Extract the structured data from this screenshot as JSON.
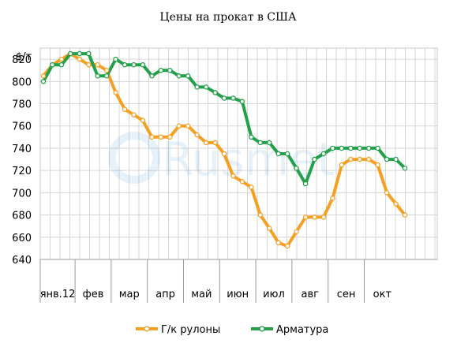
{
  "chart_data": {
    "type": "line",
    "title": "Цены на прокат в США",
    "ylabel": "$/т",
    "ylim": [
      640,
      830
    ],
    "yticks": [
      640,
      660,
      680,
      700,
      720,
      740,
      760,
      780,
      800,
      820
    ],
    "grid": true,
    "legend_position": "bottom",
    "months": [
      "янв.12",
      "фев",
      "мар",
      "апр",
      "май",
      "июн",
      "июл",
      "авг",
      "сен",
      "окт"
    ],
    "month_weeks": [
      4,
      4,
      4,
      4,
      4,
      4,
      4,
      4,
      4,
      4
    ],
    "series": [
      {
        "name": "Г/к рулоны",
        "color": "#f5a023",
        "values": [
          805,
          815,
          820,
          825,
          820,
          815,
          815,
          810,
          790,
          775,
          770,
          765,
          750,
          750,
          750,
          760,
          760,
          752,
          745,
          745,
          735,
          715,
          710,
          705,
          680,
          668,
          655,
          652,
          665,
          678,
          678,
          678,
          695,
          725,
          730,
          730,
          730,
          725,
          700,
          690,
          680
        ]
      },
      {
        "name": "Арматура",
        "color": "#22a04a",
        "values": [
          800,
          815,
          815,
          825,
          825,
          825,
          805,
          805,
          820,
          815,
          815,
          815,
          805,
          810,
          810,
          805,
          805,
          795,
          795,
          790,
          785,
          785,
          782,
          750,
          745,
          745,
          735,
          735,
          722,
          708,
          730,
          735,
          740,
          740,
          740,
          740,
          740,
          740,
          730,
          730,
          722
        ]
      }
    ]
  }
}
